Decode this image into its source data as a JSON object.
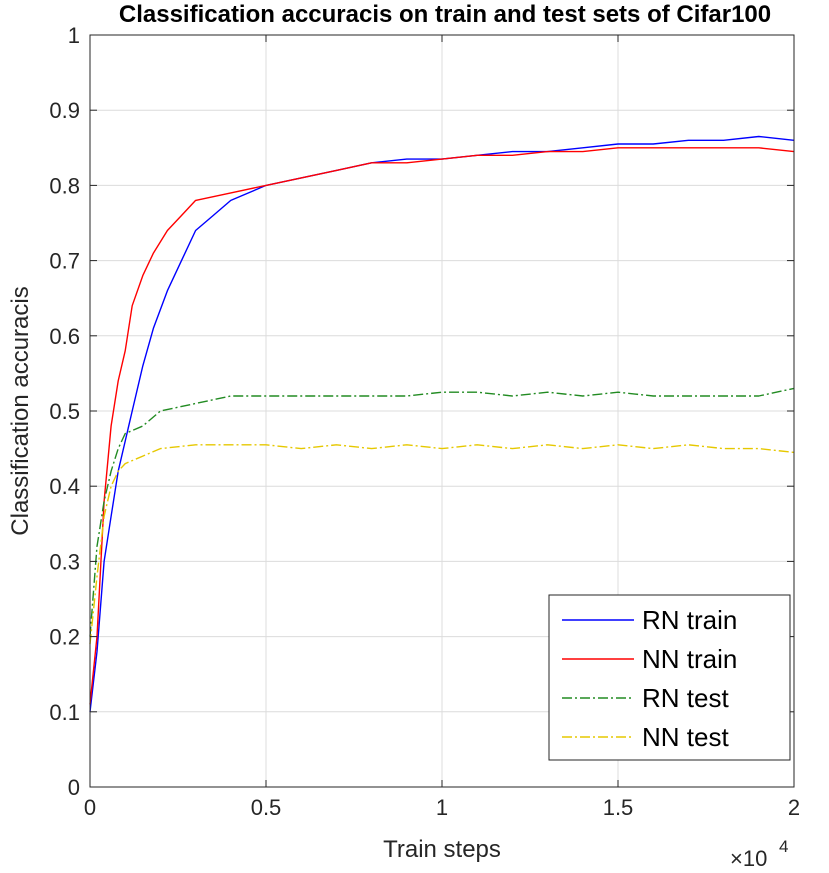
{
  "chart_data": {
    "type": "line",
    "title": "Classification accuracis on train and test sets of Cifar100",
    "xlabel": "Train steps",
    "ylabel": "Classification accuracis",
    "x_multiplier_base": "×10",
    "x_multiplier_exp": "4",
    "xlim": [
      0,
      2
    ],
    "ylim": [
      0,
      1
    ],
    "xticks": [
      0,
      0.5,
      1,
      1.5,
      2
    ],
    "xtick_labels": [
      "0",
      "0.5",
      "1",
      "1.5",
      "2"
    ],
    "yticks": [
      0,
      0.1,
      0.2,
      0.3,
      0.4,
      0.5,
      0.6,
      0.7,
      0.8,
      0.9,
      1
    ],
    "ytick_labels": [
      "0",
      "0.1",
      "0.2",
      "0.3",
      "0.4",
      "0.5",
      "0.6",
      "0.7",
      "0.8",
      "0.9",
      "1"
    ],
    "grid": true,
    "legend_position": "bottom-right",
    "series": [
      {
        "name": "RN train",
        "color": "#0000ff",
        "style": "solid",
        "x": [
          0,
          0.02,
          0.04,
          0.06,
          0.08,
          0.1,
          0.12,
          0.15,
          0.18,
          0.22,
          0.26,
          0.3,
          0.35,
          0.4,
          0.5,
          0.6,
          0.7,
          0.8,
          0.9,
          1.0,
          1.1,
          1.2,
          1.3,
          1.4,
          1.5,
          1.6,
          1.7,
          1.8,
          1.9,
          2.0
        ],
        "y": [
          0.1,
          0.18,
          0.3,
          0.36,
          0.42,
          0.46,
          0.5,
          0.56,
          0.61,
          0.66,
          0.7,
          0.74,
          0.76,
          0.78,
          0.8,
          0.81,
          0.82,
          0.83,
          0.835,
          0.835,
          0.84,
          0.845,
          0.845,
          0.85,
          0.855,
          0.855,
          0.86,
          0.86,
          0.865,
          0.86
        ]
      },
      {
        "name": "NN train",
        "color": "#ff0000",
        "style": "solid",
        "x": [
          0,
          0.02,
          0.04,
          0.06,
          0.08,
          0.1,
          0.12,
          0.15,
          0.18,
          0.22,
          0.26,
          0.3,
          0.35,
          0.4,
          0.5,
          0.6,
          0.7,
          0.8,
          0.9,
          1.0,
          1.1,
          1.2,
          1.3,
          1.4,
          1.5,
          1.6,
          1.7,
          1.8,
          1.9,
          2.0
        ],
        "y": [
          0.11,
          0.2,
          0.38,
          0.48,
          0.54,
          0.58,
          0.64,
          0.68,
          0.71,
          0.74,
          0.76,
          0.78,
          0.785,
          0.79,
          0.8,
          0.81,
          0.82,
          0.83,
          0.83,
          0.835,
          0.84,
          0.84,
          0.845,
          0.845,
          0.85,
          0.85,
          0.85,
          0.85,
          0.85,
          0.845
        ]
      },
      {
        "name": "RN test",
        "color": "#228b22",
        "style": "dashdot",
        "x": [
          0,
          0.02,
          0.04,
          0.06,
          0.08,
          0.1,
          0.15,
          0.2,
          0.3,
          0.4,
          0.5,
          0.6,
          0.7,
          0.8,
          0.9,
          1.0,
          1.1,
          1.2,
          1.3,
          1.4,
          1.5,
          1.6,
          1.7,
          1.8,
          1.9,
          2.0
        ],
        "y": [
          0.2,
          0.32,
          0.38,
          0.42,
          0.45,
          0.47,
          0.48,
          0.5,
          0.51,
          0.52,
          0.52,
          0.52,
          0.52,
          0.52,
          0.52,
          0.525,
          0.525,
          0.52,
          0.525,
          0.52,
          0.525,
          0.52,
          0.52,
          0.52,
          0.52,
          0.53
        ]
      },
      {
        "name": "NN test",
        "color": "#e6c800",
        "style": "dashdot",
        "x": [
          0,
          0.02,
          0.04,
          0.06,
          0.08,
          0.1,
          0.15,
          0.2,
          0.3,
          0.4,
          0.5,
          0.6,
          0.7,
          0.8,
          0.9,
          1.0,
          1.1,
          1.2,
          1.3,
          1.4,
          1.5,
          1.6,
          1.7,
          1.8,
          1.9,
          2.0
        ],
        "y": [
          0.19,
          0.28,
          0.36,
          0.4,
          0.42,
          0.43,
          0.44,
          0.45,
          0.455,
          0.455,
          0.455,
          0.45,
          0.455,
          0.45,
          0.455,
          0.45,
          0.455,
          0.45,
          0.455,
          0.45,
          0.455,
          0.45,
          0.455,
          0.45,
          0.45,
          0.445
        ]
      }
    ]
  }
}
